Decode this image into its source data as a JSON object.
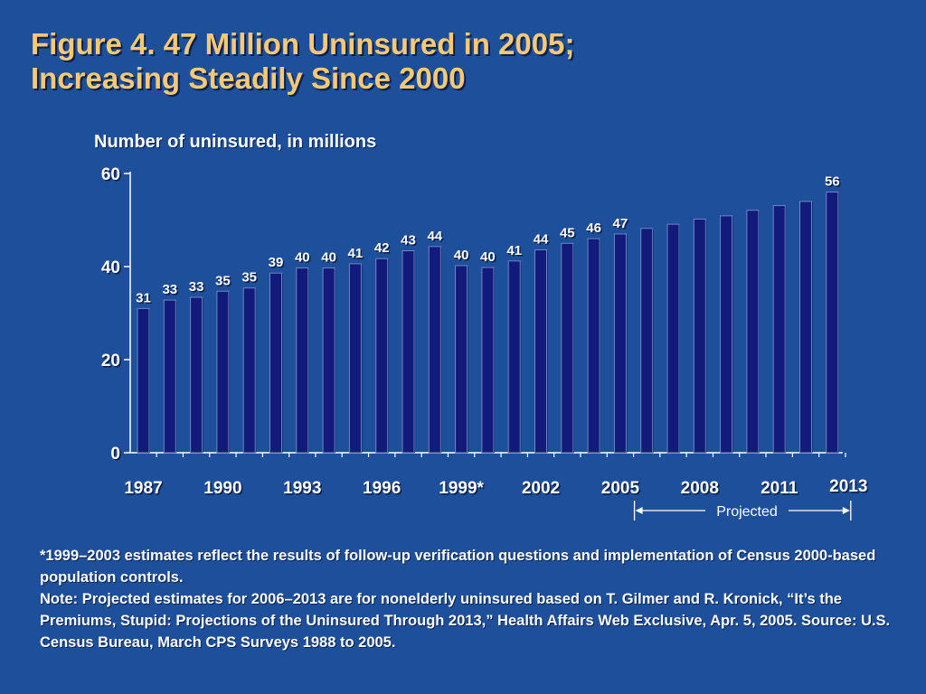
{
  "title": {
    "line1": "Figure 4. 47 Million Uninsured in 2005;",
    "line2": "Increasing Steadily Since 2000"
  },
  "colors": {
    "background": "#1d4f9a",
    "title": "#f7c977",
    "bar": "#121a7a",
    "text": "#ffffff"
  },
  "chart_data": {
    "type": "bar",
    "ylabel": "Number of uninsured, in millions",
    "ylim": [
      0,
      60
    ],
    "yticks": [
      0,
      20,
      40,
      60
    ],
    "categories": [
      "1987",
      "1988",
      "1989",
      "1990",
      "1991",
      "1992",
      "1993",
      "1994",
      "1995",
      "1996",
      "1997",
      "1998",
      "1999",
      "2000",
      "2001",
      "2002",
      "2003",
      "2004",
      "2005",
      "2006",
      "2007",
      "2008",
      "2009",
      "2010",
      "2011",
      "2012",
      "2013"
    ],
    "values": [
      31.0,
      32.8,
      33.4,
      34.7,
      35.4,
      38.6,
      39.7,
      39.7,
      40.6,
      41.7,
      43.4,
      44.3,
      40.2,
      39.8,
      41.2,
      43.6,
      45.0,
      46.0,
      47.0,
      48.2,
      49.1,
      50.2,
      50.9,
      52.1,
      53.1,
      54.0,
      56.0
    ],
    "data_labels": [
      "31",
      "33",
      "33",
      "35",
      "35",
      "39",
      "40",
      "40",
      "41",
      "42",
      "43",
      "44",
      "40",
      "40",
      "41",
      "44",
      "45",
      "46",
      "47",
      "",
      "",
      "",
      "",
      "",
      "",
      "",
      "56"
    ],
    "xtick_labels": [
      {
        "label": "1987",
        "category": "1987"
      },
      {
        "label": "1990",
        "category": "1990"
      },
      {
        "label": "1993",
        "category": "1993"
      },
      {
        "label": "1996",
        "category": "1996"
      },
      {
        "label": "1999*",
        "category": "1999"
      },
      {
        "label": "2002",
        "category": "2002"
      },
      {
        "label": "2005",
        "category": "2005"
      },
      {
        "label": "2008",
        "category": "2008"
      },
      {
        "label": "2011",
        "category": "2011"
      },
      {
        "label": "2013",
        "category": "2013"
      }
    ],
    "projection": {
      "label": "Projected",
      "from": "2006",
      "to": "2013"
    },
    "grid": false
  },
  "footnotes": [
    "*1999–2003 estimates reflect the results of follow-up verification questions and implementation of Census 2000-based population controls.",
    "Note: Projected estimates for 2006–2013 are for nonelderly uninsured based on T. Gilmer and R. Kronick, “It’s the Premiums, Stupid: Projections of the Uninsured Through 2013,” Health Affairs Web Exclusive, Apr. 5, 2005. Source: U.S. Census Bureau, March CPS Surveys 1988 to 2005."
  ]
}
